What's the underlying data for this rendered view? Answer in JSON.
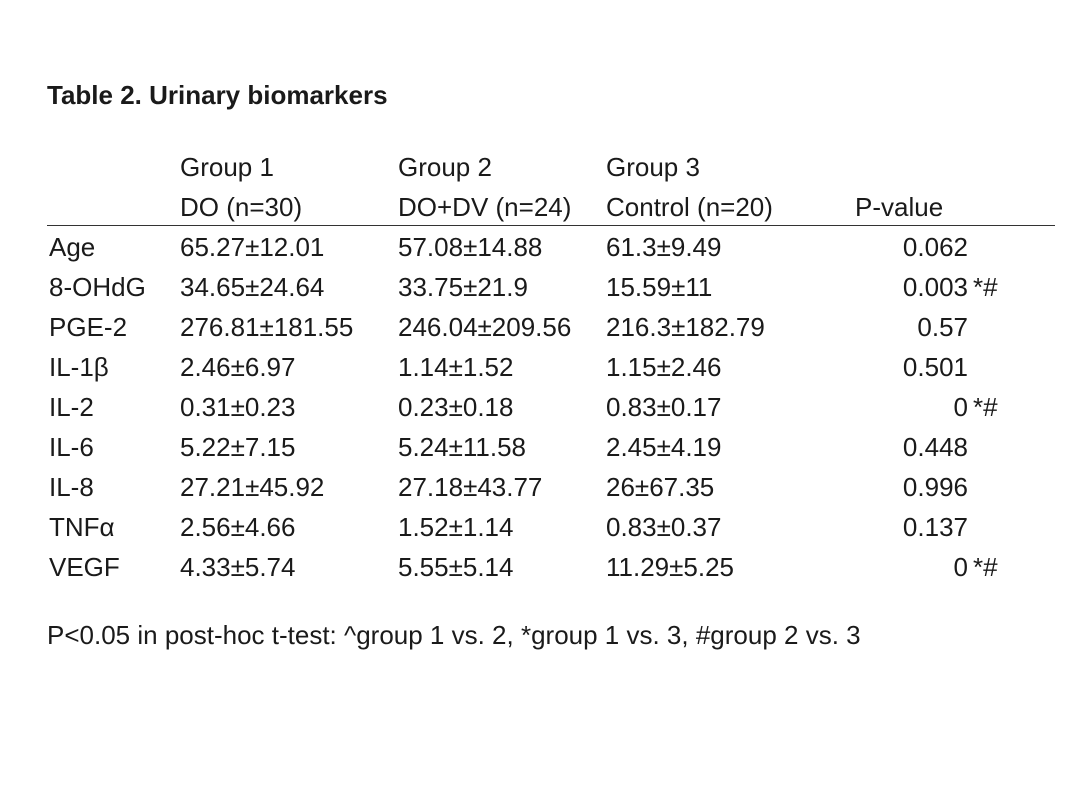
{
  "table": {
    "title": "Table 2. Urinary biomarkers",
    "header_row1": [
      "Group 1",
      "Group 2",
      "Group 3"
    ],
    "header_row2": [
      "DO (n=30)",
      "DO+DV (n=24)",
      "Control (n=20)",
      "P-value"
    ],
    "rows": [
      {
        "label": "Age",
        "g1": "65.27±12.01",
        "g2": "57.08±14.88",
        "g3": "61.3±9.49",
        "p": "0.062",
        "mark": ""
      },
      {
        "label": "8-OHdG",
        "g1": "34.65±24.64",
        "g2": "33.75±21.9",
        "g3": "15.59±11",
        "p": "0.003",
        "mark": "*#"
      },
      {
        "label": "PGE-2",
        "g1": "276.81±181.55",
        "g2": "246.04±209.56",
        "g3": "216.3±182.79",
        "p": "0.57",
        "mark": ""
      },
      {
        "label": "IL-1β",
        "g1": "2.46±6.97",
        "g2": "1.14±1.52",
        "g3": "1.15±2.46",
        "p": "0.501",
        "mark": ""
      },
      {
        "label": "IL-2",
        "g1": "0.31±0.23",
        "g2": "0.23±0.18",
        "g3": "0.83±0.17",
        "p": "0",
        "mark": "*#"
      },
      {
        "label": "IL-6",
        "g1": "5.22±7.15",
        "g2": "5.24±11.58",
        "g3": "2.45±4.19",
        "p": "0.448",
        "mark": ""
      },
      {
        "label": "IL-8",
        "g1": "27.21±45.92",
        "g2": "27.18±43.77",
        "g3": "26±67.35",
        "p": "0.996",
        "mark": ""
      },
      {
        "label": "TNFα",
        "g1": "2.56±4.66",
        "g2": "1.52±1.14",
        "g3": "0.83±0.37",
        "p": "0.137",
        "mark": ""
      },
      {
        "label": "VEGF",
        "g1": "4.33±5.74",
        "g2": "5.55±5.14",
        "g3": "11.29±5.25",
        "p": "0",
        "mark": "*#"
      }
    ],
    "footnote": "P<0.05 in post-hoc t-test: ^group 1 vs. 2, *group 1 vs. 3, #group 2 vs. 3"
  }
}
